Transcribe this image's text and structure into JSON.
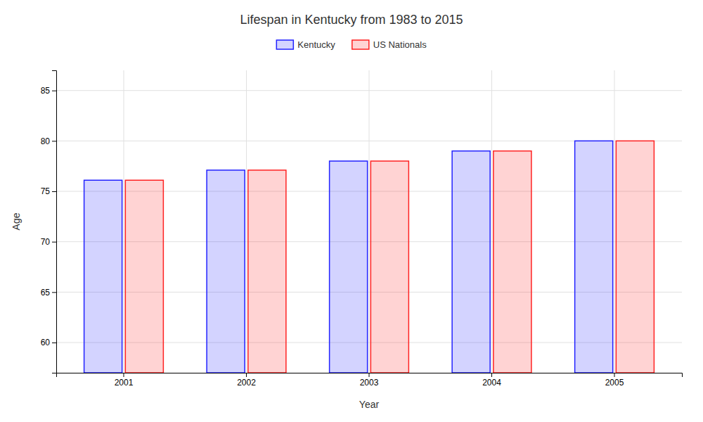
{
  "chart_data": {
    "type": "bar",
    "title": "Lifespan in Kentucky from 1983 to 2015",
    "xlabel": "Year",
    "ylabel": "Age",
    "categories": [
      "2001",
      "2002",
      "2003",
      "2004",
      "2005"
    ],
    "series": [
      {
        "name": "Kentucky",
        "color": "#2222ff",
        "values": [
          76.1,
          77.1,
          78.0,
          79.0,
          80.0
        ]
      },
      {
        "name": "US Nationals",
        "color": "#ff2222",
        "values": [
          76.1,
          77.1,
          78.0,
          79.0,
          80.0
        ]
      }
    ],
    "ylim": [
      57,
      87
    ],
    "yticks": [
      60,
      65,
      70,
      75,
      80,
      85
    ],
    "grid": true,
    "legend": "top"
  }
}
